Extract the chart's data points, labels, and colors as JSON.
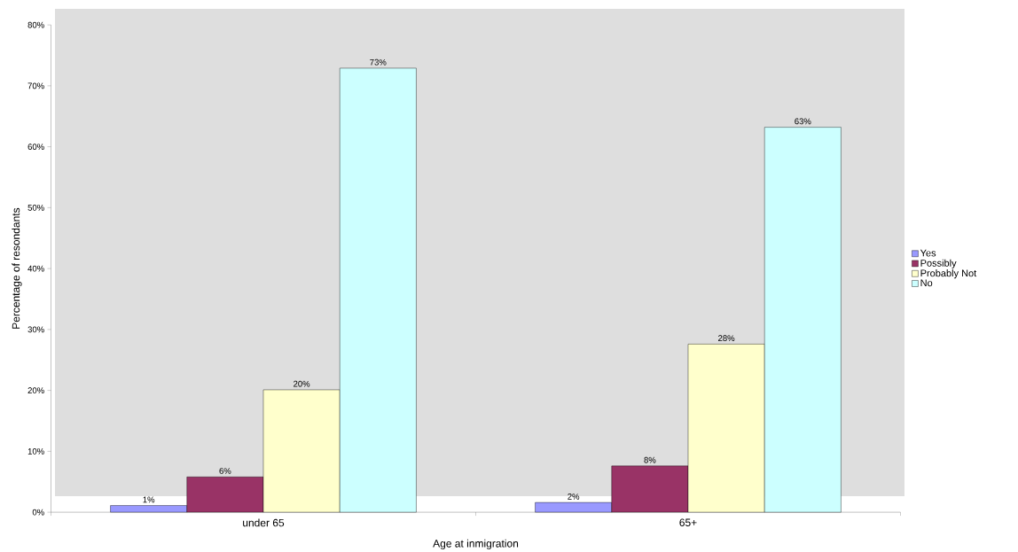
{
  "chart_data": {
    "type": "bar",
    "xlabel": "Age at inmigration",
    "ylabel": "Percentage of resondants",
    "categories": [
      "under 65",
      "65+"
    ],
    "series": [
      {
        "name": "Yes",
        "color": "#9999ff",
        "values": [
          1.1,
          1.6
        ],
        "value_labels": [
          "1%",
          "2%"
        ]
      },
      {
        "name": "Possibly",
        "color": "#993366",
        "values": [
          5.8,
          7.6
        ],
        "value_labels": [
          "6%",
          "8%"
        ]
      },
      {
        "name": "Probably Not",
        "color": "#ffffcc",
        "values": [
          20.1,
          27.6
        ],
        "value_labels": [
          "20%",
          "28%"
        ]
      },
      {
        "name": "No",
        "color": "#ccffff",
        "values": [
          72.9,
          63.2
        ],
        "value_labels": [
          "73%",
          "63%"
        ]
      }
    ],
    "ylim": [
      0,
      80
    ],
    "yticks": [
      {
        "value": 0,
        "label": "0%"
      },
      {
        "value": 10,
        "label": "10%"
      },
      {
        "value": 20,
        "label": "20%"
      },
      {
        "value": 30,
        "label": "30%"
      },
      {
        "value": 40,
        "label": "40%"
      },
      {
        "value": 50,
        "label": "50%"
      },
      {
        "value": 60,
        "label": "60%"
      },
      {
        "value": 70,
        "label": "70%"
      },
      {
        "value": 80,
        "label": "80%"
      }
    ],
    "legend": "right",
    "grid": false
  }
}
